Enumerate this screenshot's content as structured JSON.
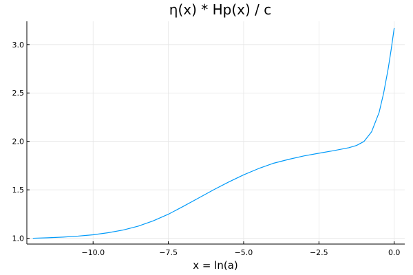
{
  "chart_data": {
    "type": "line",
    "title": "η(x) * Hp(x) / c",
    "xlabel": "x = ln(a)",
    "ylabel": "",
    "xlim": [
      -12.2,
      0.35
    ],
    "ylim": [
      0.94,
      3.24
    ],
    "grid": true,
    "legend": "none",
    "x_ticks": [
      {
        "value": -10.0,
        "label": "−10.0"
      },
      {
        "value": -7.5,
        "label": "−7.5"
      },
      {
        "value": -5.0,
        "label": "−5.0"
      },
      {
        "value": -2.5,
        "label": "−2.5"
      },
      {
        "value": 0.0,
        "label": "0.0"
      }
    ],
    "y_ticks": [
      {
        "value": 1.0,
        "label": "1.0"
      },
      {
        "value": 1.5,
        "label": "1.5"
      },
      {
        "value": 2.0,
        "label": "2.0"
      },
      {
        "value": 2.5,
        "label": "2.5"
      },
      {
        "value": 3.0,
        "label": "3.0"
      }
    ],
    "series": [
      {
        "color": "#009af9",
        "x": [
          -12.0,
          -11.5,
          -11.0,
          -10.5,
          -10.0,
          -9.5,
          -9.0,
          -8.5,
          -8.0,
          -7.5,
          -7.0,
          -6.5,
          -6.0,
          -5.5,
          -5.0,
          -4.5,
          -4.0,
          -3.5,
          -3.0,
          -2.5,
          -2.0,
          -1.5,
          -1.25,
          -1.0,
          -0.75,
          -0.5,
          -0.35,
          -0.2,
          -0.1,
          0.0
        ],
        "y": [
          1.0,
          1.005,
          1.012,
          1.022,
          1.036,
          1.057,
          1.085,
          1.125,
          1.18,
          1.248,
          1.33,
          1.415,
          1.5,
          1.58,
          1.655,
          1.72,
          1.775,
          1.815,
          1.85,
          1.878,
          1.905,
          1.935,
          1.958,
          2.0,
          2.1,
          2.3,
          2.5,
          2.75,
          2.95,
          3.17
        ]
      }
    ]
  }
}
